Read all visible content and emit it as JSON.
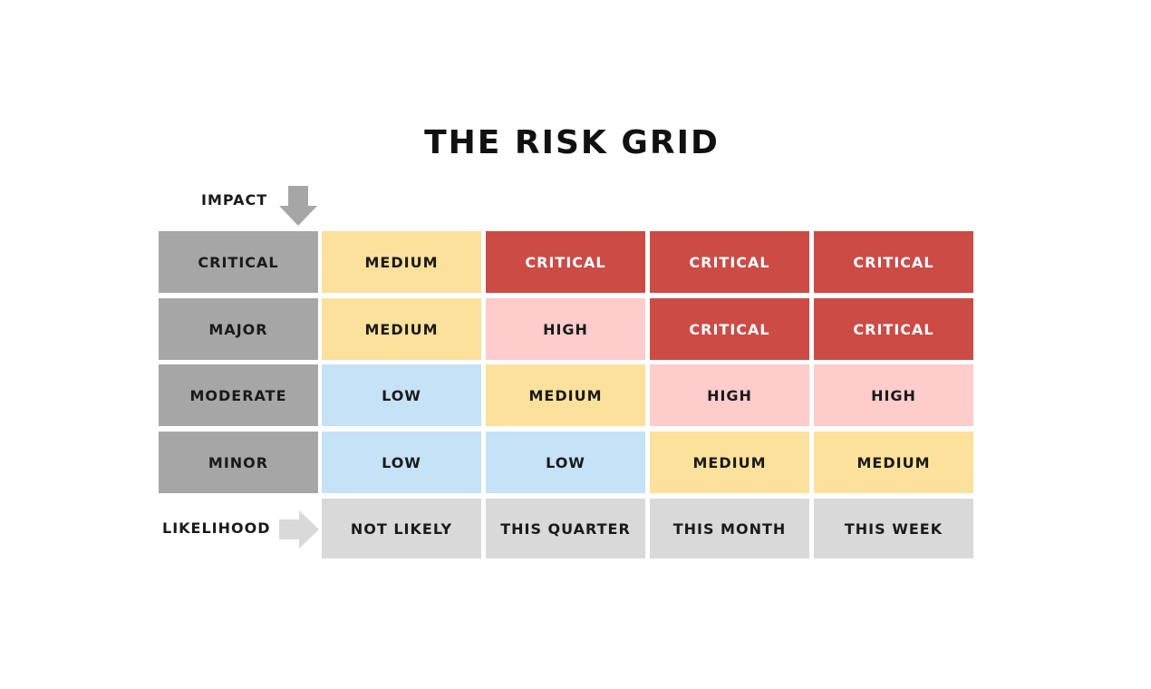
{
  "title": "THE RISK GRID",
  "impact_label": "IMPACT",
  "likelihood_label": "LIKELIHOOD",
  "icons": {
    "impact_arrow": "arrow-down-icon",
    "likelihood_arrow": "arrow-right-icon"
  },
  "colors": {
    "header_gray": "#a6a6a6",
    "likelihood_gray": "#d9d9d9",
    "medium": "#fce19c",
    "critical": "#cc4b45",
    "high": "#fdcccb",
    "low": "#c5e2f6",
    "arrow": "#a6a6a6"
  },
  "impact_levels": [
    "CRITICAL",
    "MAJOR",
    "MODERATE",
    "MINOR"
  ],
  "likelihood_levels": [
    "NOT LIKELY",
    "THIS QUARTER",
    "THIS MONTH",
    "THIS WEEK"
  ],
  "grid": [
    [
      "MEDIUM",
      "CRITICAL",
      "CRITICAL",
      "CRITICAL"
    ],
    [
      "MEDIUM",
      "HIGH",
      "CRITICAL",
      "CRITICAL"
    ],
    [
      "LOW",
      "MEDIUM",
      "HIGH",
      "HIGH"
    ],
    [
      "LOW",
      "LOW",
      "MEDIUM",
      "MEDIUM"
    ]
  ]
}
